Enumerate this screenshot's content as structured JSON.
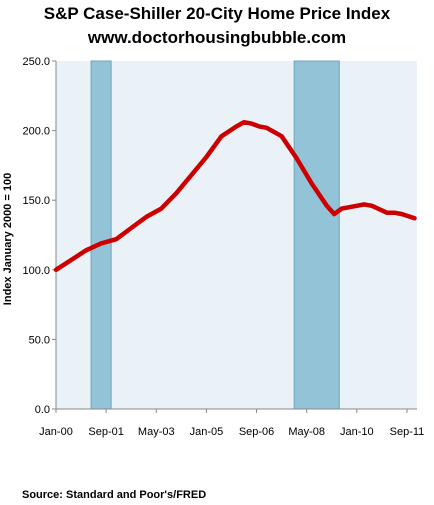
{
  "title_line1": "S&P Case-Shiller 20-City Home Price Index",
  "title_line2": "www.doctorhousingbubble.com",
  "source": "Source: Standard  and  Poor's/FRED",
  "colors": {
    "plot_background": "#eaf2f7",
    "recession_band": "#92c3d6",
    "recession_edge": "#6fa6bd",
    "series_line": "#cc0000",
    "axis": "#888888"
  },
  "chart_data": {
    "type": "line",
    "title": "S&P Case-Shiller 20-City Home Price Index",
    "ylabel": "Index January 2000 = 100",
    "xlabel": "",
    "ylim": [
      0,
      250
    ],
    "yticks": [
      0,
      50,
      100,
      150,
      200,
      250
    ],
    "ytick_labels": [
      "0.0",
      "50.0",
      "100.0",
      "150.0",
      "200.0",
      "250.0"
    ],
    "xlim": [
      "2000-01",
      "2012-01"
    ],
    "xticks": [
      "2000-01",
      "2001-09",
      "2003-05",
      "2005-01",
      "2006-09",
      "2008-05",
      "2010-01",
      "2011-09"
    ],
    "xtick_labels": [
      "Jan-00",
      "Sep-01",
      "May-03",
      "Jan-05",
      "Sep-06",
      "May-08",
      "Jan-10",
      "Sep-11"
    ],
    "grid": false,
    "legend": "none",
    "shaded_periods": [
      {
        "start": "2001-03",
        "end": "2001-11"
      },
      {
        "start": "2007-12",
        "end": "2009-06"
      }
    ],
    "series": [
      {
        "x": [
          "2000-01",
          "2000-07",
          "2001-01",
          "2001-07",
          "2002-01",
          "2002-07",
          "2003-01",
          "2003-07",
          "2004-01",
          "2004-07",
          "2005-01",
          "2005-07",
          "2006-01",
          "2006-04",
          "2006-07",
          "2006-10",
          "2007-01",
          "2007-07",
          "2008-01",
          "2008-07",
          "2009-01",
          "2009-04",
          "2009-07",
          "2010-01",
          "2010-04",
          "2010-07",
          "2011-01",
          "2011-04",
          "2011-07",
          "2011-12"
        ],
        "values": [
          100,
          107,
          114,
          119,
          122,
          130,
          138,
          144,
          155,
          168,
          181,
          196,
          203,
          206,
          205,
          203,
          202,
          196,
          180,
          162,
          146,
          140,
          144,
          146,
          147,
          146,
          141,
          141,
          140,
          137
        ]
      }
    ]
  }
}
